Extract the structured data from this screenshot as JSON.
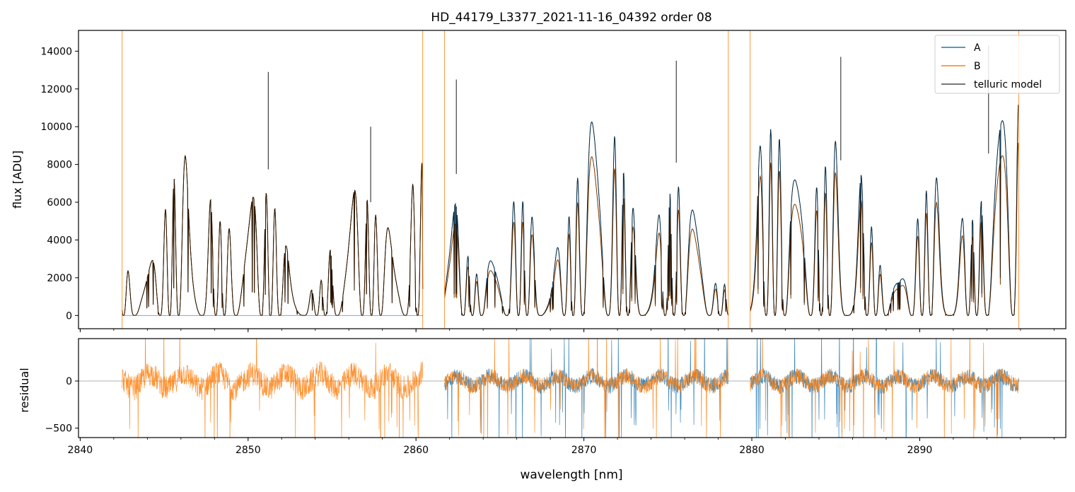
{
  "chart_data": [
    {
      "type": "line",
      "title": "HD_44179_L3377_2021-11-16_04392  order 08",
      "xlabel": "",
      "ylabel": "flux [ADU]",
      "xlim": [
        2839.9,
        2898.7
      ],
      "ylim": [
        -700,
        15100
      ],
      "yticks": [
        0,
        2000,
        4000,
        6000,
        8000,
        10000,
        12000,
        14000
      ],
      "xticks": [
        2840,
        2850,
        2860,
        2870,
        2880,
        2890
      ],
      "legend_position": "top-right",
      "legend": [
        "A",
        "B",
        "telluric model"
      ],
      "series": [
        {
          "name": "A",
          "color": "#1f77b4",
          "segments": [
            [
              2842.5,
              2860.4
            ],
            [
              2861.7,
              2878.6
            ],
            [
              2879.9,
              2895.9
            ]
          ]
        },
        {
          "name": "B",
          "color": "#ff7f0e",
          "segments": [
            [
              2842.5,
              2860.4
            ],
            [
              2861.7,
              2878.6
            ],
            [
              2879.9,
              2895.9
            ]
          ]
        },
        {
          "name": "telluric model",
          "color": "#000000",
          "segments": [
            [
              2842.5,
              2860.4
            ],
            [
              2861.7,
              2878.6
            ],
            [
              2879.9,
              2895.9
            ]
          ]
        }
      ],
      "sample_peaks": [
        {
          "x": 2851.2,
          "y": 12900
        },
        {
          "x": 2857.3,
          "y": 10000
        },
        {
          "x": 2862.4,
          "y": 12500
        },
        {
          "x": 2875.5,
          "y": 13500
        },
        {
          "x": 2885.3,
          "y": 13700
        },
        {
          "x": 2894.1,
          "y": 14300
        }
      ]
    },
    {
      "type": "line",
      "xlabel": "wavelength [nm]",
      "ylabel": "residual",
      "xlim": [
        2839.9,
        2898.7
      ],
      "ylim": [
        -600,
        450
      ],
      "yticks": [
        -500,
        0
      ],
      "ytick_labels": [
        "−500",
        "0"
      ],
      "xticks": [
        2840,
        2850,
        2860,
        2870,
        2880,
        2890
      ],
      "xtick_labels": [
        "2840",
        "2850",
        "2860",
        "2870",
        "2880",
        "2890"
      ],
      "zero_line": true,
      "series": [
        {
          "name": "A",
          "color": "#1f77b4"
        },
        {
          "name": "B",
          "color": "#ff7f0e"
        }
      ]
    }
  ]
}
